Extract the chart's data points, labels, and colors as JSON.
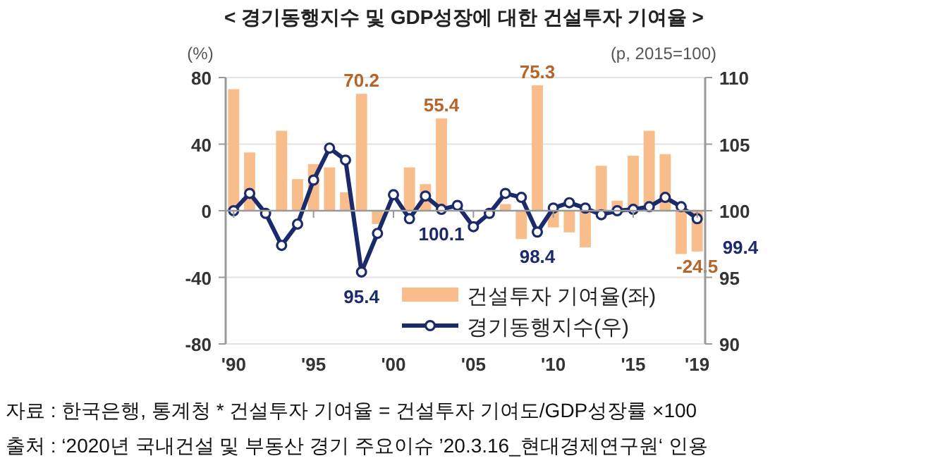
{
  "chart_data": {
    "type": "bar",
    "title": "< 경기동행지수 및 GDP성장에 대한 건설투자 기여율 >",
    "x": [
      1990,
      1991,
      1992,
      1993,
      1994,
      1995,
      1996,
      1997,
      1998,
      1999,
      2000,
      2001,
      2002,
      2003,
      2004,
      2005,
      2006,
      2007,
      2008,
      2009,
      2010,
      2011,
      2012,
      2013,
      2014,
      2015,
      2016,
      2017,
      2018,
      2019
    ],
    "series": [
      {
        "name": "건설투자 기여율(좌)",
        "color": "#f9bd8c",
        "values": [
          73,
          35,
          null,
          48,
          19,
          28,
          26,
          11,
          70.2,
          -8,
          null,
          26,
          16,
          55.4,
          null,
          null,
          null,
          4,
          -17,
          75.3,
          -10,
          -13,
          -22,
          27,
          6,
          33,
          48,
          34,
          -26,
          -24.5
        ],
        "value_labels": [
          null,
          null,
          null,
          null,
          null,
          null,
          null,
          null,
          "70.2",
          null,
          null,
          null,
          null,
          "55.4",
          null,
          null,
          null,
          null,
          null,
          "75.3",
          null,
          null,
          null,
          null,
          null,
          null,
          null,
          null,
          null,
          "-24.5"
        ]
      },
      {
        "name": "경기동행지수(우)",
        "type": "line",
        "axis": "y2",
        "color": "#1b2a6b",
        "values": [
          100.0,
          101.3,
          99.8,
          97.4,
          99.0,
          102.3,
          104.7,
          103.8,
          95.4,
          98.3,
          101.2,
          99.4,
          101.1,
          100.1,
          100.4,
          98.8,
          99.8,
          101.3,
          101.0,
          98.4,
          100.2,
          100.6,
          100.2,
          99.7,
          100.0,
          100.1,
          100.3,
          101.0,
          100.3,
          99.4
        ],
        "value_labels": [
          null,
          null,
          null,
          null,
          null,
          null,
          null,
          null,
          "95.4",
          null,
          null,
          null,
          null,
          "100.1",
          null,
          null,
          null,
          null,
          null,
          "98.4",
          null,
          null,
          null,
          null,
          null,
          null,
          null,
          null,
          null,
          "99.4"
        ]
      }
    ],
    "ylabel": "(%)",
    "y2label": "(p, 2015=100)",
    "xlim": [
      1989.5,
      2019.5
    ],
    "xticks": [
      {
        "value": 1990,
        "label": "'90"
      },
      {
        "value": 1995,
        "label": "'95"
      },
      {
        "value": 2000,
        "label": "'00"
      },
      {
        "value": 2005,
        "label": "'05"
      },
      {
        "value": 2010,
        "label": "'10"
      },
      {
        "value": 2015,
        "label": "'15"
      },
      {
        "value": 2019,
        "label": "'19"
      }
    ],
    "ylim": [
      -80,
      80
    ],
    "yticks": [
      -80,
      -40,
      0,
      40,
      80
    ],
    "y2lim": [
      90,
      110
    ],
    "y2ticks": [
      90,
      95,
      100,
      105,
      110
    ],
    "grid": "y",
    "legend": "bottom right",
    "marker": "circle",
    "annotations": [
      "자료 : 한국은행, 통계청 * 건설투자 기여율 = 건설투자 기여도/GDP성장률 ×100",
      "출처 : ‘2020년 국내건설 및 부동산 경기 주요이슈 ’20.3.16_현대경제연구원‘ 인용"
    ]
  }
}
